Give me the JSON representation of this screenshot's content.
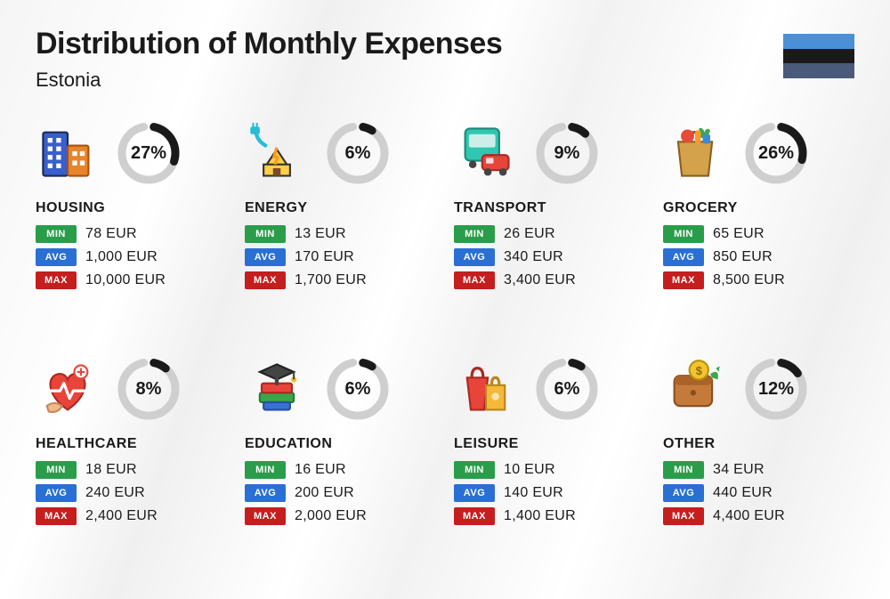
{
  "title": "Distribution of Monthly Expenses",
  "subtitle": "Estonia",
  "flag": {
    "stripes": [
      "#4a90d9",
      "#1a1a1a",
      "#4a5a7a"
    ]
  },
  "ring": {
    "track_color": "#cfcfcf",
    "fill_color": "#1a1a1a",
    "stroke_width": 9,
    "radius": 30,
    "gap_deg": 22
  },
  "badges": {
    "min": {
      "label": "MIN",
      "bg": "#2a9d4a"
    },
    "avg": {
      "label": "AVG",
      "bg": "#2a6fd4"
    },
    "max": {
      "label": "MAX",
      "bg": "#c41e1e"
    }
  },
  "categories": [
    {
      "name": "HOUSING",
      "pct": 27,
      "icon": "housing",
      "min": "78 EUR",
      "avg": "1,000 EUR",
      "max": "10,000 EUR"
    },
    {
      "name": "ENERGY",
      "pct": 6,
      "icon": "energy",
      "min": "13 EUR",
      "avg": "170 EUR",
      "max": "1,700 EUR"
    },
    {
      "name": "TRANSPORT",
      "pct": 9,
      "icon": "transport",
      "min": "26 EUR",
      "avg": "340 EUR",
      "max": "3,400 EUR"
    },
    {
      "name": "GROCERY",
      "pct": 26,
      "icon": "grocery",
      "min": "65 EUR",
      "avg": "850 EUR",
      "max": "8,500 EUR"
    },
    {
      "name": "HEALTHCARE",
      "pct": 8,
      "icon": "healthcare",
      "min": "18 EUR",
      "avg": "240 EUR",
      "max": "2,400 EUR"
    },
    {
      "name": "EDUCATION",
      "pct": 6,
      "icon": "education",
      "min": "16 EUR",
      "avg": "200 EUR",
      "max": "2,000 EUR"
    },
    {
      "name": "LEISURE",
      "pct": 6,
      "icon": "leisure",
      "min": "10 EUR",
      "avg": "140 EUR",
      "max": "1,400 EUR"
    },
    {
      "name": "OTHER",
      "pct": 12,
      "icon": "other",
      "min": "34 EUR",
      "avg": "440 EUR",
      "max": "4,400 EUR"
    }
  ]
}
